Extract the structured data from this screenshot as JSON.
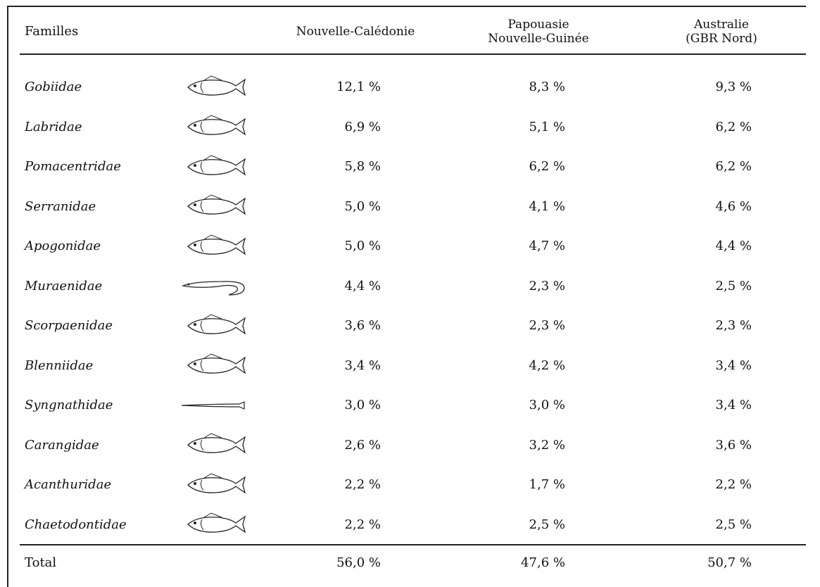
{
  "header": {
    "columns": [
      [
        "Familles"
      ],
      [
        "Nouvelle-Calédonie"
      ],
      [
        "Papouasie",
        "Nouvelle-Guinée"
      ],
      [
        "Australie",
        "(GBR Nord)"
      ]
    ]
  },
  "table": {
    "rows": [
      [
        "Gobiidae",
        "12,1 %",
        "8,3 %",
        "9,3 %"
      ],
      [
        "Labridae",
        "6,9 %",
        "5,1 %",
        "6,2 %"
      ],
      [
        "Pomacentridae",
        "5,8 %",
        "6,2 %",
        "6,2 %"
      ],
      [
        "Serranidae",
        "5,0 %",
        "4,1 %",
        "4,6 %"
      ],
      [
        "Apogonidae",
        "5,0 %",
        "4,7 %",
        "4,4 %"
      ],
      [
        "Muraenidae",
        "4,4 %",
        "2,3 %",
        "2,5 %"
      ],
      [
        "Scorpaenidae",
        "3,6 %",
        "2,3 %",
        "2,3 %"
      ],
      [
        "Blenniidae",
        "3,4 %",
        "4,2 %",
        "3,4 %"
      ],
      [
        "Syngnathidae",
        "3,0 %",
        "3,0 %",
        "3,4 %"
      ],
      [
        "Carangidae",
        "2,6 %",
        "3,2 %",
        "3,6 %"
      ],
      [
        "Acanthuridae",
        "2,2 %",
        "1,7 %",
        "2,2 %"
      ],
      [
        "Chaetodontidae",
        "2,2 %",
        "2,5 %",
        "2,5 %"
      ]
    ],
    "total": [
      "Total",
      "56,0 %",
      "47,6 %",
      "50,7 %"
    ]
  }
}
